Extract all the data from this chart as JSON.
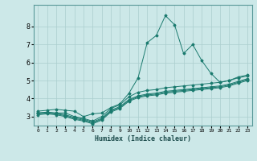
{
  "xlabel": "Humidex (Indice chaleur)",
  "ylabel": "",
  "bg_color": "#cce8e8",
  "line_color": "#1a7a6e",
  "grid_color": "#aacece",
  "xlim": [
    -0.5,
    23.5
  ],
  "ylim": [
    2.5,
    9.2
  ],
  "xticks": [
    0,
    1,
    2,
    3,
    4,
    5,
    6,
    7,
    8,
    9,
    10,
    11,
    12,
    13,
    14,
    15,
    16,
    17,
    18,
    19,
    20,
    21,
    22,
    23
  ],
  "yticks": [
    3,
    4,
    5,
    6,
    7,
    8
  ],
  "lines": [
    {
      "x": [
        0,
        1,
        2,
        3,
        4,
        5,
        6,
        7,
        8,
        9,
        10,
        11,
        12,
        13,
        14,
        15,
        16,
        17,
        18,
        19,
        20,
        21,
        22,
        23
      ],
      "y": [
        3.3,
        3.35,
        3.4,
        3.35,
        3.3,
        3.0,
        3.15,
        3.2,
        3.5,
        3.7,
        4.3,
        5.15,
        7.1,
        7.5,
        8.6,
        8.1,
        6.5,
        7.0,
        6.1,
        5.4,
        4.9,
        5.0,
        5.2,
        5.3
      ]
    },
    {
      "x": [
        0,
        1,
        2,
        3,
        4,
        5,
        6,
        7,
        8,
        9,
        10,
        11,
        12,
        13,
        14,
        15,
        16,
        17,
        18,
        19,
        20,
        21,
        22,
        23
      ],
      "y": [
        3.2,
        3.25,
        3.2,
        3.2,
        3.0,
        2.9,
        2.75,
        3.0,
        3.45,
        3.65,
        4.1,
        4.35,
        4.45,
        4.5,
        4.6,
        4.65,
        4.7,
        4.75,
        4.8,
        4.85,
        4.9,
        5.0,
        5.15,
        5.25
      ]
    },
    {
      "x": [
        0,
        1,
        2,
        3,
        4,
        5,
        6,
        7,
        8,
        9,
        10,
        11,
        12,
        13,
        14,
        15,
        16,
        17,
        18,
        19,
        20,
        21,
        22,
        23
      ],
      "y": [
        3.2,
        3.22,
        3.18,
        3.1,
        2.95,
        2.85,
        2.7,
        2.9,
        3.35,
        3.55,
        3.95,
        4.15,
        4.25,
        4.3,
        4.4,
        4.45,
        4.5,
        4.55,
        4.6,
        4.65,
        4.7,
        4.8,
        4.95,
        5.1
      ]
    },
    {
      "x": [
        0,
        1,
        2,
        3,
        4,
        5,
        6,
        7,
        8,
        9,
        10,
        11,
        12,
        13,
        14,
        15,
        16,
        17,
        18,
        19,
        20,
        21,
        22,
        23
      ],
      "y": [
        3.15,
        3.2,
        3.15,
        3.05,
        2.9,
        2.8,
        2.65,
        2.85,
        3.3,
        3.5,
        3.9,
        4.1,
        4.2,
        4.25,
        4.35,
        4.4,
        4.45,
        4.5,
        4.55,
        4.6,
        4.65,
        4.75,
        4.9,
        5.05
      ]
    },
    {
      "x": [
        0,
        1,
        2,
        3,
        4,
        5,
        6,
        7,
        8,
        9,
        10,
        11,
        12,
        13,
        14,
        15,
        16,
        17,
        18,
        19,
        20,
        21,
        22,
        23
      ],
      "y": [
        3.1,
        3.15,
        3.1,
        3.0,
        2.85,
        2.75,
        2.6,
        2.8,
        3.25,
        3.45,
        3.85,
        4.05,
        4.15,
        4.2,
        4.3,
        4.35,
        4.4,
        4.45,
        4.5,
        4.55,
        4.6,
        4.7,
        4.85,
        5.0
      ]
    }
  ]
}
